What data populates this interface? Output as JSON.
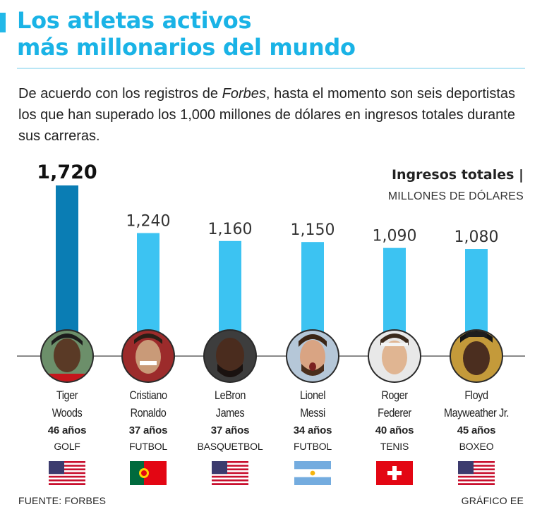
{
  "title": {
    "line1": "Los atletas activos",
    "line2": "más millonarios del mundo"
  },
  "description": {
    "before": "De acuerdo con los registros de ",
    "emphasis": "Forbes",
    "after": ", hasta el momento son seis deportistas los que han superado los 1,000 millones de dólares en ingresos totales durante sus carreras."
  },
  "legend": {
    "title": "Ingresos totales |",
    "unit": "MILLONES DE DÓLARES"
  },
  "chart_data": {
    "type": "bar",
    "title": "Ingresos totales",
    "ylabel": "Millones de dólares",
    "categories": [
      "Tiger Woods",
      "Cristiano Ronaldo",
      "LeBron James",
      "Lionel Messi",
      "Roger Federer",
      "Floyd Mayweather Jr."
    ],
    "values": [
      1720,
      1240,
      1160,
      1150,
      1090,
      1080
    ],
    "value_labels": [
      "1,720",
      "1,240",
      "1,160",
      "1,150",
      "1,090",
      "1,080"
    ],
    "highlight_index": 0,
    "ylim": [
      0,
      1720
    ]
  },
  "athletes": [
    {
      "name1": "Tiger",
      "name2": "Woods",
      "age": "46 años",
      "sport": "GOLF",
      "flag": "usa-flag"
    },
    {
      "name1": "Cristiano",
      "name2": "Ronaldo",
      "age": "37 años",
      "sport": "FUTBOL",
      "flag": "portugal-flag"
    },
    {
      "name1": "LeBron",
      "name2": "James",
      "age": "37 años",
      "sport": "BASQUETBOL",
      "flag": "usa-flag"
    },
    {
      "name1": "Lionel",
      "name2": "Messi",
      "age": "34 años",
      "sport": "FUTBOL",
      "flag": "argentina-flag"
    },
    {
      "name1": "Roger",
      "name2": "Federer",
      "age": "40 años",
      "sport": "TENIS",
      "flag": "switzerland-flag"
    },
    {
      "name1": "Floyd",
      "name2": "Mayweather Jr.",
      "age": "45 años",
      "sport": "BOXEO",
      "flag": "usa-flag"
    }
  ],
  "colors": {
    "title": "#1ab3e6",
    "highlight_bar": "#0a7db4",
    "bar": "#3cc3f2",
    "text": "#222222"
  },
  "footer": {
    "source": "FUENTE: FORBES",
    "credit": "GRÁFICO EE"
  }
}
